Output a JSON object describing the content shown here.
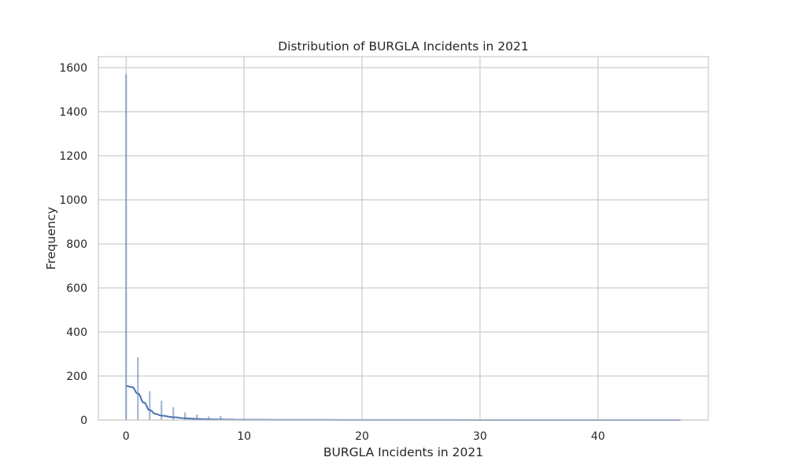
{
  "chart_data": {
    "type": "histogram",
    "title": "Distribution of BURGLA Incidents in 2021",
    "xlabel": "BURGLA Incidents in 2021",
    "ylabel": "Frequency",
    "xlim": [
      -2.35,
      49.35
    ],
    "ylim": [
      0,
      1650
    ],
    "xticks": [
      0,
      10,
      20,
      30,
      40
    ],
    "yticks": [
      0,
      200,
      400,
      600,
      800,
      1000,
      1200,
      1400,
      1600
    ],
    "grid": true,
    "bar_color": "#4c72b0",
    "bar_alpha": 0.5,
    "kde_color": "#4c72b0",
    "bins": [
      {
        "x": 0,
        "count": 1570
      },
      {
        "x": 1,
        "count": 285
      },
      {
        "x": 2,
        "count": 131
      },
      {
        "x": 3,
        "count": 88
      },
      {
        "x": 4,
        "count": 59
      },
      {
        "x": 5,
        "count": 35
      },
      {
        "x": 6,
        "count": 25
      },
      {
        "x": 7,
        "count": 17
      },
      {
        "x": 8,
        "count": 19
      },
      {
        "x": 9,
        "count": 7
      },
      {
        "x": 10,
        "count": 6
      },
      {
        "x": 11,
        "count": 5
      },
      {
        "x": 12,
        "count": 4
      },
      {
        "x": 13,
        "count": 3
      },
      {
        "x": 14,
        "count": 2
      },
      {
        "x": 15,
        "count": 3
      },
      {
        "x": 16,
        "count": 2
      },
      {
        "x": 17,
        "count": 3
      },
      {
        "x": 18,
        "count": 1
      },
      {
        "x": 20,
        "count": 1
      },
      {
        "x": 22,
        "count": 1
      },
      {
        "x": 25,
        "count": 1
      },
      {
        "x": 47,
        "count": 1
      }
    ],
    "kde": [
      [
        0,
        155
      ],
      [
        0.5,
        150
      ],
      [
        1,
        120
      ],
      [
        1.5,
        80
      ],
      [
        2,
        45
      ],
      [
        2.5,
        28
      ],
      [
        3,
        20
      ],
      [
        4,
        13
      ],
      [
        5,
        8
      ],
      [
        6,
        5
      ],
      [
        7,
        3.5
      ],
      [
        8,
        2.5
      ],
      [
        10,
        1.5
      ],
      [
        13,
        1
      ],
      [
        17,
        0.8
      ],
      [
        20,
        0.5
      ],
      [
        25,
        0.3
      ],
      [
        30,
        0.2
      ],
      [
        47,
        0.1
      ]
    ]
  }
}
